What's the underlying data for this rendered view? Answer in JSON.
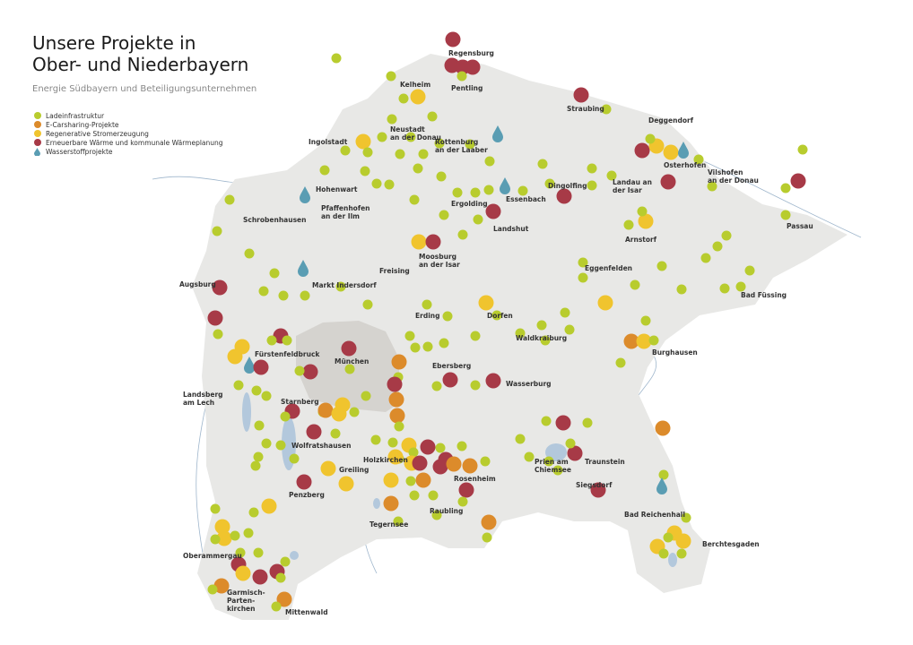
{
  "header": {
    "title_line1": "Unsere Projekte in",
    "title_line2": "Ober- und Niederbayern",
    "subtitle": "Energie Südbayern und Beteiligungsunternehmen"
  },
  "legend": [
    {
      "label": "Ladeinfrastruktur",
      "color": "#b8cc2e",
      "shape": "circle"
    },
    {
      "label": "E-Carsharing-Projekte",
      "color": "#dc8b2b",
      "shape": "circle"
    },
    {
      "label": "Regenerative Stromerzeugung",
      "color": "#f0c42e",
      "shape": "circle"
    },
    {
      "label": "Erneuerbare Wärme und kommunale Wärmeplanung",
      "color": "#a73a47",
      "shape": "circle"
    },
    {
      "label": "Wasserstoffprojekte",
      "color": "#5a9db3",
      "shape": "drop"
    }
  ],
  "colors": {
    "land": "#e8e8e6",
    "munich_area": "#d5d3cf",
    "water": "#b3c8dc",
    "rivers": "#9fb6cc"
  },
  "cities": [
    "Regensburg",
    "Pentling",
    "Kelheim",
    "Straubing",
    "Deggendorf",
    "Neustadt\nan der Donau",
    "Ingolstadt",
    "Osterhofen",
    "Rottenburg\nan der Laaber",
    "Dingolfing",
    "Landau an\nder Isar",
    "Vilshofen\nan der Donau",
    "Passau",
    "Hohenwart",
    "Essenbach",
    "Ergolding",
    "Schrobenhausen",
    "Pfaffenhofen\nan der Ilm",
    "Landshut",
    "Arnstorf",
    "Moosburg\nan der Isar",
    "Freising",
    "Eggenfelden",
    "Markt Indersdorf",
    "Augsburg",
    "Bad Füssing",
    "Erding",
    "Dorfen",
    "Waldkraiburg",
    "Fürstenfeldbruck",
    "München",
    "Burghausen",
    "Ebersberg",
    "Wasserburg",
    "Landsberg\nam Lech",
    "Starnberg",
    "Wolfratshausen",
    "Holzkirchen",
    "Greiling",
    "Rosenheim",
    "Prien am\nChiemsee",
    "Traunstein",
    "Siegsdorf",
    "Penzberg",
    "Raubling",
    "Tegernsee",
    "Bad Reichenhall",
    "Oberammergau",
    "Berchtesgaden",
    "Garmisch-\nParten-\nkirchen",
    "Mittenwald"
  ]
}
